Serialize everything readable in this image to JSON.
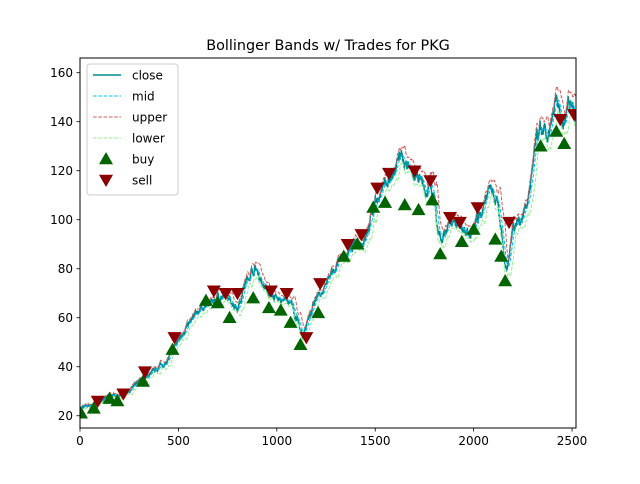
{
  "chart_data": {
    "type": "line",
    "title": "Bollinger Bands w/ Trades for PKG",
    "xlabel": "",
    "ylabel": "",
    "xlim": [
      0,
      2520
    ],
    "ylim": [
      15,
      166
    ],
    "x_ticks": [
      0,
      500,
      1000,
      1500,
      2000,
      2500
    ],
    "x_tick_labels": [
      "0",
      "500",
      "1000",
      "1500",
      "2000",
      "2500"
    ],
    "y_ticks": [
      20,
      40,
      60,
      80,
      100,
      120,
      140,
      160
    ],
    "y_tick_labels": [
      "20",
      "40",
      "60",
      "80",
      "100",
      "120",
      "140",
      "160"
    ],
    "grid": false,
    "legend_position": "upper-left",
    "legend": [
      {
        "label": "close",
        "key": "close"
      },
      {
        "label": "mid",
        "key": "mid"
      },
      {
        "label": "upper",
        "key": "upper"
      },
      {
        "label": "lower",
        "key": "lower"
      },
      {
        "label": "buy",
        "key": "buy"
      },
      {
        "label": "sell",
        "key": "sell"
      }
    ],
    "colors": {
      "close": "#008b8b",
      "mid": "#00bfff",
      "upper": "#cd5c5c",
      "lower": "#90ee90",
      "buy": "#006400",
      "sell": "#8b0000"
    },
    "close_anchor_points": {
      "x": [
        0,
        40,
        80,
        100,
        140,
        200,
        240,
        280,
        300,
        340,
        400,
        440,
        480,
        520,
        560,
        600,
        640,
        680,
        700,
        740,
        780,
        800,
        840,
        880,
        900,
        940,
        960,
        1000,
        1040,
        1080,
        1100,
        1130,
        1160,
        1200,
        1240,
        1280,
        1320,
        1360,
        1400,
        1440,
        1480,
        1500,
        1540,
        1560,
        1600,
        1620,
        1640,
        1660,
        1700,
        1740,
        1760,
        1780,
        1800,
        1820,
        1840,
        1860,
        1900,
        1940,
        1960,
        2000,
        2040,
        2060,
        2080,
        2100,
        2120,
        2140,
        2160,
        2180,
        2200,
        2240,
        2280,
        2300,
        2320,
        2340,
        2360,
        2380,
        2400,
        2420,
        2440,
        2460,
        2480,
        2500,
        2520
      ],
      "y": [
        23,
        24,
        25,
        26,
        28,
        28,
        30,
        32,
        34,
        36,
        40,
        42,
        48,
        54,
        58,
        63,
        65,
        67,
        69,
        68,
        66,
        64,
        74,
        80,
        79,
        72,
        70,
        67,
        68,
        64,
        60,
        52,
        60,
        67,
        72,
        78,
        84,
        86,
        90,
        92,
        100,
        108,
        112,
        116,
        118,
        126,
        124,
        120,
        118,
        114,
        110,
        115,
        108,
        96,
        90,
        95,
        100,
        97,
        93,
        98,
        104,
        109,
        112,
        110,
        106,
        98,
        80,
        85,
        98,
        100,
        110,
        122,
        132,
        136,
        135,
        132,
        140,
        148,
        143,
        140,
        150,
        146,
        142
      ]
    },
    "buy_points": {
      "x": [
        5,
        70,
        150,
        190,
        320,
        470,
        640,
        700,
        760,
        880,
        960,
        1020,
        1070,
        1120,
        1210,
        1340,
        1410,
        1490,
        1550,
        1650,
        1720,
        1790,
        1830,
        1940,
        2000,
        2110,
        2140,
        2160,
        2340,
        2420,
        2460
      ],
      "y": [
        21,
        23,
        27,
        26,
        34,
        47,
        67,
        66,
        60,
        68,
        64,
        63,
        58,
        49,
        62,
        85,
        90,
        105,
        107,
        106,
        104,
        108,
        86,
        91,
        96,
        92,
        85,
        75,
        130,
        136,
        131
      ]
    },
    "sell_points": {
      "x": [
        90,
        220,
        330,
        480,
        680,
        740,
        800,
        970,
        1050,
        1150,
        1220,
        1360,
        1430,
        1510,
        1570,
        1700,
        1780,
        1880,
        1930,
        2020,
        2180,
        2440,
        2510
      ],
      "y": [
        26,
        29,
        38,
        52,
        71,
        70,
        70,
        71,
        70,
        52,
        74,
        90,
        94,
        113,
        119,
        120,
        116,
        101,
        99,
        105,
        99,
        141,
        143
      ]
    },
    "band_window": 20,
    "band_width_std": 2
  }
}
